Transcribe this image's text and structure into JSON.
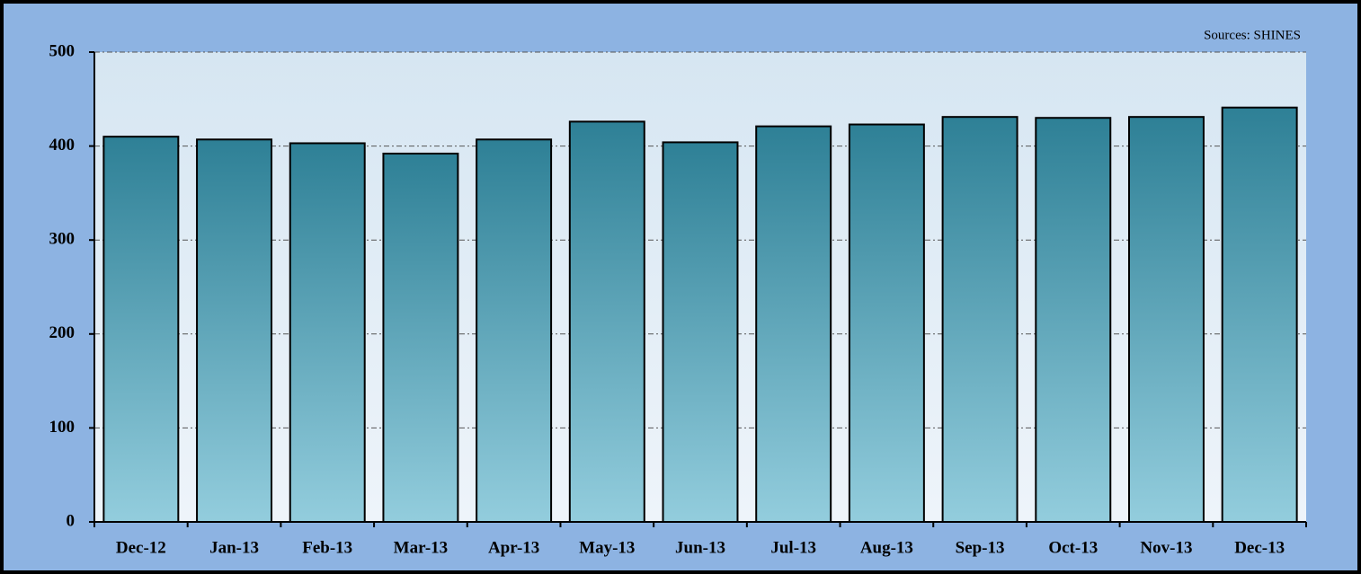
{
  "chart_data": {
    "type": "bar",
    "annotation": "Sources: SHINES",
    "categories": [
      "Dec-12",
      "Jan-13",
      "Feb-13",
      "Mar-13",
      "Apr-13",
      "May-13",
      "Jun-13",
      "Jul-13",
      "Aug-13",
      "Sep-13",
      "Oct-13",
      "Nov-13",
      "Dec-13"
    ],
    "values": [
      410,
      407,
      403,
      392,
      407,
      426,
      404,
      421,
      423,
      431,
      430,
      431,
      441
    ],
    "color": "#2e8096",
    "ylim": [
      0,
      500
    ],
    "yticks": [
      0,
      100,
      200,
      300,
      400,
      500
    ],
    "grid": true
  }
}
